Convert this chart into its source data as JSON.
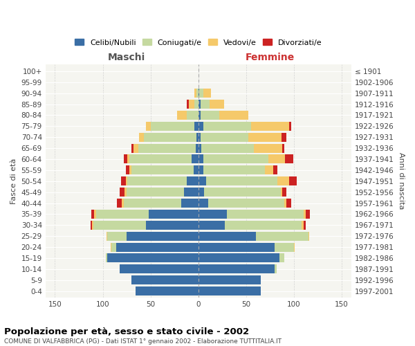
{
  "age_groups": [
    "0-4",
    "5-9",
    "10-14",
    "15-19",
    "20-24",
    "25-29",
    "30-34",
    "35-39",
    "40-44",
    "45-49",
    "50-54",
    "55-59",
    "60-64",
    "65-69",
    "70-74",
    "75-79",
    "80-84",
    "85-89",
    "90-94",
    "95-99",
    "100+"
  ],
  "birth_years": [
    "1997-2001",
    "1992-1996",
    "1987-1991",
    "1982-1986",
    "1977-1981",
    "1972-1976",
    "1967-1971",
    "1962-1966",
    "1957-1961",
    "1952-1956",
    "1947-1951",
    "1942-1946",
    "1937-1941",
    "1932-1936",
    "1927-1931",
    "1922-1926",
    "1917-1921",
    "1912-1916",
    "1907-1911",
    "1902-1906",
    "≤ 1901"
  ],
  "maschi": {
    "celibi": [
      66,
      70,
      82,
      95,
      86,
      75,
      55,
      52,
      18,
      15,
      12,
      5,
      7,
      3,
      2,
      4,
      0,
      0,
      0,
      0,
      0
    ],
    "coniugati": [
      0,
      0,
      0,
      2,
      5,
      20,
      55,
      55,
      60,
      60,
      62,
      65,
      65,
      60,
      55,
      46,
      12,
      4,
      2,
      0,
      0
    ],
    "vedovi": [
      0,
      0,
      0,
      0,
      1,
      1,
      1,
      2,
      2,
      2,
      2,
      2,
      2,
      5,
      5,
      5,
      10,
      6,
      2,
      0,
      0
    ],
    "divorziati": [
      0,
      0,
      0,
      0,
      0,
      0,
      2,
      3,
      5,
      5,
      5,
      4,
      4,
      2,
      0,
      0,
      0,
      2,
      0,
      0,
      0
    ]
  },
  "femmine": {
    "nubili": [
      65,
      65,
      80,
      85,
      80,
      60,
      28,
      30,
      10,
      6,
      8,
      5,
      5,
      3,
      2,
      5,
      2,
      2,
      1,
      0,
      0
    ],
    "coniugate": [
      0,
      0,
      2,
      5,
      20,
      55,
      80,
      80,
      80,
      80,
      75,
      65,
      68,
      55,
      50,
      50,
      20,
      10,
      4,
      0,
      0
    ],
    "vedove": [
      0,
      0,
      0,
      0,
      1,
      1,
      2,
      2,
      2,
      2,
      12,
      8,
      18,
      30,
      35,
      40,
      30,
      15,
      8,
      0,
      0
    ],
    "divorziate": [
      0,
      0,
      0,
      0,
      0,
      0,
      2,
      5,
      5,
      4,
      8,
      5,
      8,
      2,
      5,
      2,
      0,
      0,
      0,
      0,
      0
    ]
  },
  "colors": {
    "celibi": "#3a6ea5",
    "coniugati": "#c5d9a0",
    "vedovi": "#f5c96a",
    "divorziati": "#cc2222"
  },
  "legend_labels": [
    "Celibi/Nubili",
    "Coniugati/e",
    "Vedovi/e",
    "Divorziati/e"
  ],
  "xlim": 160,
  "title": "Popolazione per età, sesso e stato civile - 2002",
  "subtitle": "COMUNE DI VALFABBRICA (PG) - Dati ISTAT 1° gennaio 2002 - Elaborazione TUTTITALIA.IT",
  "ylabel_left": "Fasce di età",
  "ylabel_right": "Anni di nascita",
  "xlabel_maschi": "Maschi",
  "xlabel_femmine": "Femmine",
  "bg_color": "#f5f5f0"
}
